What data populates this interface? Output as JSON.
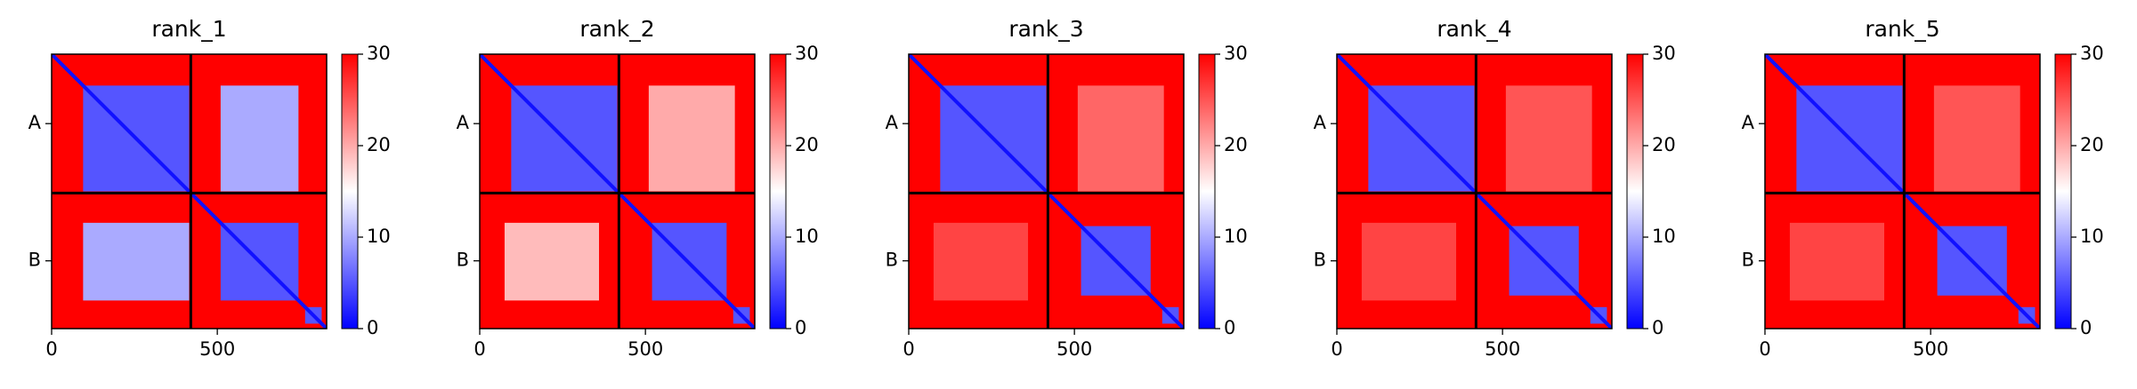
{
  "chart_data": [
    {
      "type": "heatmap",
      "title": "rank_1",
      "colormap": "bwr",
      "xlim": [
        0,
        830
      ],
      "xticks": [
        0,
        500
      ],
      "ylim": [
        830,
        0
      ],
      "yticks": [
        {
          "value": 210,
          "label": "A"
        },
        {
          "value": 625,
          "label": "B"
        }
      ],
      "chain_breaks": [
        420
      ],
      "diagonal": 1,
      "clim": [
        0,
        30
      ],
      "cticks": [
        0,
        10,
        20,
        30
      ],
      "regions": [
        {
          "x": [
            0,
            830
          ],
          "y": [
            0,
            830
          ],
          "value": 30
        },
        {
          "x": [
            95,
            415
          ],
          "y": [
            95,
            415
          ],
          "value": 5
        },
        {
          "x": [
            510,
            745
          ],
          "y": [
            95,
            415
          ],
          "value": 10
        },
        {
          "x": [
            95,
            415
          ],
          "y": [
            510,
            745
          ],
          "value": 10
        },
        {
          "x": [
            510,
            745
          ],
          "y": [
            510,
            745
          ],
          "value": 5
        },
        {
          "x": [
            765,
            815
          ],
          "y": [
            765,
            815
          ],
          "value": 5
        }
      ]
    },
    {
      "type": "heatmap",
      "title": "rank_2",
      "colormap": "bwr",
      "xlim": [
        0,
        830
      ],
      "xticks": [
        0,
        500
      ],
      "ylim": [
        830,
        0
      ],
      "yticks": [
        {
          "value": 210,
          "label": "A"
        },
        {
          "value": 625,
          "label": "B"
        }
      ],
      "chain_breaks": [
        420
      ],
      "diagonal": 1,
      "clim": [
        0,
        30
      ],
      "cticks": [
        0,
        10,
        20,
        30
      ],
      "regions": [
        {
          "x": [
            0,
            830
          ],
          "y": [
            0,
            830
          ],
          "value": 30
        },
        {
          "x": [
            95,
            415
          ],
          "y": [
            95,
            415
          ],
          "value": 5
        },
        {
          "x": [
            510,
            770
          ],
          "y": [
            95,
            415
          ],
          "value": 20
        },
        {
          "x": [
            75,
            360
          ],
          "y": [
            510,
            745
          ],
          "value": 19
        },
        {
          "x": [
            520,
            745
          ],
          "y": [
            510,
            745
          ],
          "value": 5
        },
        {
          "x": [
            765,
            815
          ],
          "y": [
            765,
            815
          ],
          "value": 5
        }
      ]
    },
    {
      "type": "heatmap",
      "title": "rank_3",
      "colormap": "bwr",
      "xlim": [
        0,
        830
      ],
      "xticks": [
        0,
        500
      ],
      "ylim": [
        830,
        0
      ],
      "yticks": [
        {
          "value": 210,
          "label": "A"
        },
        {
          "value": 625,
          "label": "B"
        }
      ],
      "chain_breaks": [
        420
      ],
      "diagonal": 1,
      "clim": [
        0,
        30
      ],
      "cticks": [
        0,
        10,
        20,
        30
      ],
      "regions": [
        {
          "x": [
            0,
            830
          ],
          "y": [
            0,
            830
          ],
          "value": 30
        },
        {
          "x": [
            95,
            415
          ],
          "y": [
            95,
            415
          ],
          "value": 5
        },
        {
          "x": [
            510,
            770
          ],
          "y": [
            95,
            415
          ],
          "value": 24
        },
        {
          "x": [
            75,
            360
          ],
          "y": [
            510,
            745
          ],
          "value": 26
        },
        {
          "x": [
            520,
            730
          ],
          "y": [
            520,
            730
          ],
          "value": 5
        },
        {
          "x": [
            765,
            815
          ],
          "y": [
            765,
            815
          ],
          "value": 5
        }
      ]
    },
    {
      "type": "heatmap",
      "title": "rank_4",
      "colormap": "bwr",
      "xlim": [
        0,
        830
      ],
      "xticks": [
        0,
        500
      ],
      "ylim": [
        830,
        0
      ],
      "yticks": [
        {
          "value": 210,
          "label": "A"
        },
        {
          "value": 625,
          "label": "B"
        }
      ],
      "chain_breaks": [
        420
      ],
      "diagonal": 1,
      "clim": [
        0,
        30
      ],
      "cticks": [
        0,
        10,
        20,
        30
      ],
      "regions": [
        {
          "x": [
            0,
            830
          ],
          "y": [
            0,
            830
          ],
          "value": 30
        },
        {
          "x": [
            95,
            415
          ],
          "y": [
            95,
            415
          ],
          "value": 5
        },
        {
          "x": [
            510,
            770
          ],
          "y": [
            95,
            415
          ],
          "value": 25
        },
        {
          "x": [
            75,
            360
          ],
          "y": [
            510,
            745
          ],
          "value": 26
        },
        {
          "x": [
            520,
            730
          ],
          "y": [
            520,
            730
          ],
          "value": 5
        },
        {
          "x": [
            765,
            815
          ],
          "y": [
            765,
            815
          ],
          "value": 5
        }
      ]
    },
    {
      "type": "heatmap",
      "title": "rank_5",
      "colormap": "bwr",
      "xlim": [
        0,
        830
      ],
      "xticks": [
        0,
        500
      ],
      "ylim": [
        830,
        0
      ],
      "yticks": [
        {
          "value": 210,
          "label": "A"
        },
        {
          "value": 625,
          "label": "B"
        }
      ],
      "chain_breaks": [
        420
      ],
      "diagonal": 1,
      "clim": [
        0,
        30
      ],
      "cticks": [
        0,
        10,
        20,
        30
      ],
      "regions": [
        {
          "x": [
            0,
            830
          ],
          "y": [
            0,
            830
          ],
          "value": 30
        },
        {
          "x": [
            95,
            415
          ],
          "y": [
            95,
            415
          ],
          "value": 5
        },
        {
          "x": [
            510,
            770
          ],
          "y": [
            95,
            415
          ],
          "value": 25
        },
        {
          "x": [
            75,
            360
          ],
          "y": [
            510,
            745
          ],
          "value": 26
        },
        {
          "x": [
            520,
            730
          ],
          "y": [
            520,
            730
          ],
          "value": 5
        },
        {
          "x": [
            765,
            815
          ],
          "y": [
            765,
            815
          ],
          "value": 5
        }
      ]
    }
  ]
}
